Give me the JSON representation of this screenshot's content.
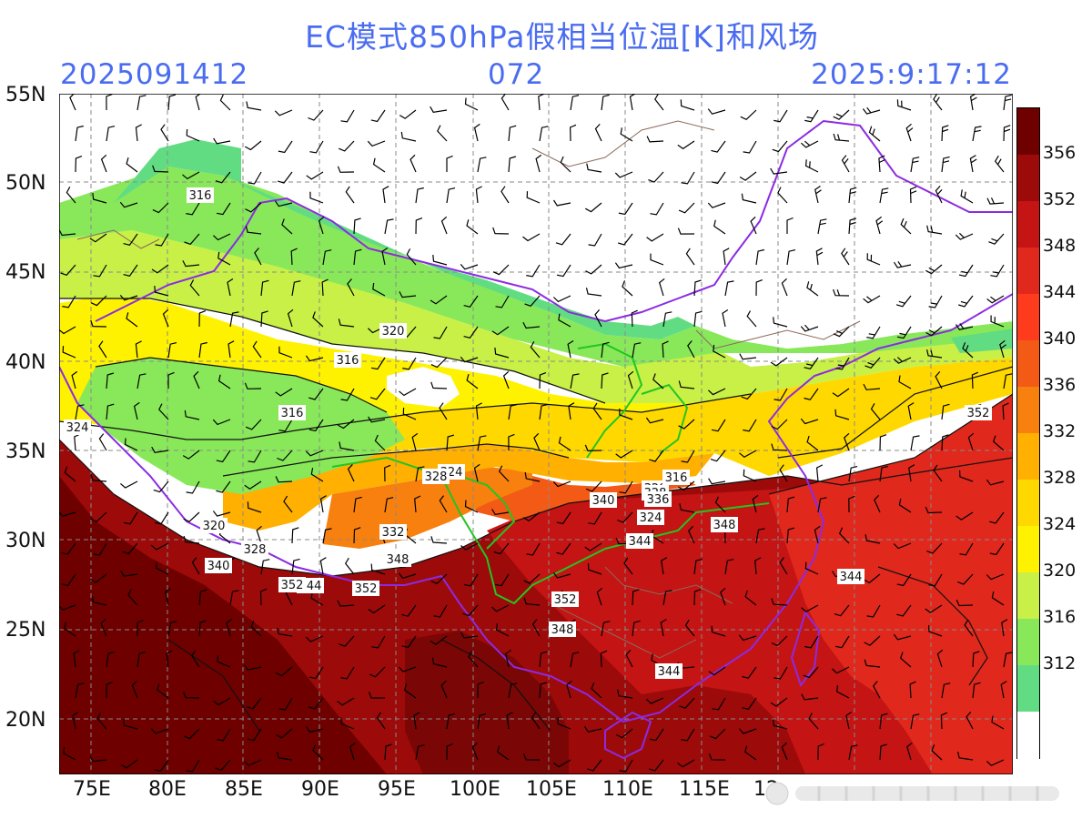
{
  "title": "EC模式850hPa假相当位温[K]和风场",
  "init_time": "2025091412",
  "forecast_hour": "072",
  "valid_time": "2025:9:17:12",
  "lat_labels": [
    "55N",
    "50N",
    "45N",
    "40N",
    "35N",
    "30N",
    "25N",
    "20N"
  ],
  "lon_labels": [
    "75E",
    "80E",
    "85E",
    "90E",
    "95E",
    "100E",
    "105E",
    "110E",
    "115E",
    "12"
  ],
  "colorbar": {
    "unit": "K",
    "labels": [
      "356",
      "352",
      "348",
      "344",
      "340",
      "336",
      "332",
      "328",
      "324",
      "320",
      "316",
      "312"
    ],
    "colors": [
      "#6e0000",
      "#9c0a0a",
      "#c41414",
      "#e0281c",
      "#ff3b1e",
      "#f25a16",
      "#f7800e",
      "#ffb000",
      "#ffd800",
      "#fff200",
      "#c8f046",
      "#88e85a",
      "#62dc82",
      "#ffffff"
    ]
  },
  "contour_labels": [
    "316",
    "320",
    "316",
    "316",
    "324",
    "324",
    "328",
    "320",
    "328",
    "340",
    "344",
    "352",
    "352",
    "332",
    "348",
    "340",
    "320",
    "316",
    "324",
    "328",
    "336",
    "344",
    "348",
    "352",
    "352",
    "348",
    "344",
    "344"
  ]
}
